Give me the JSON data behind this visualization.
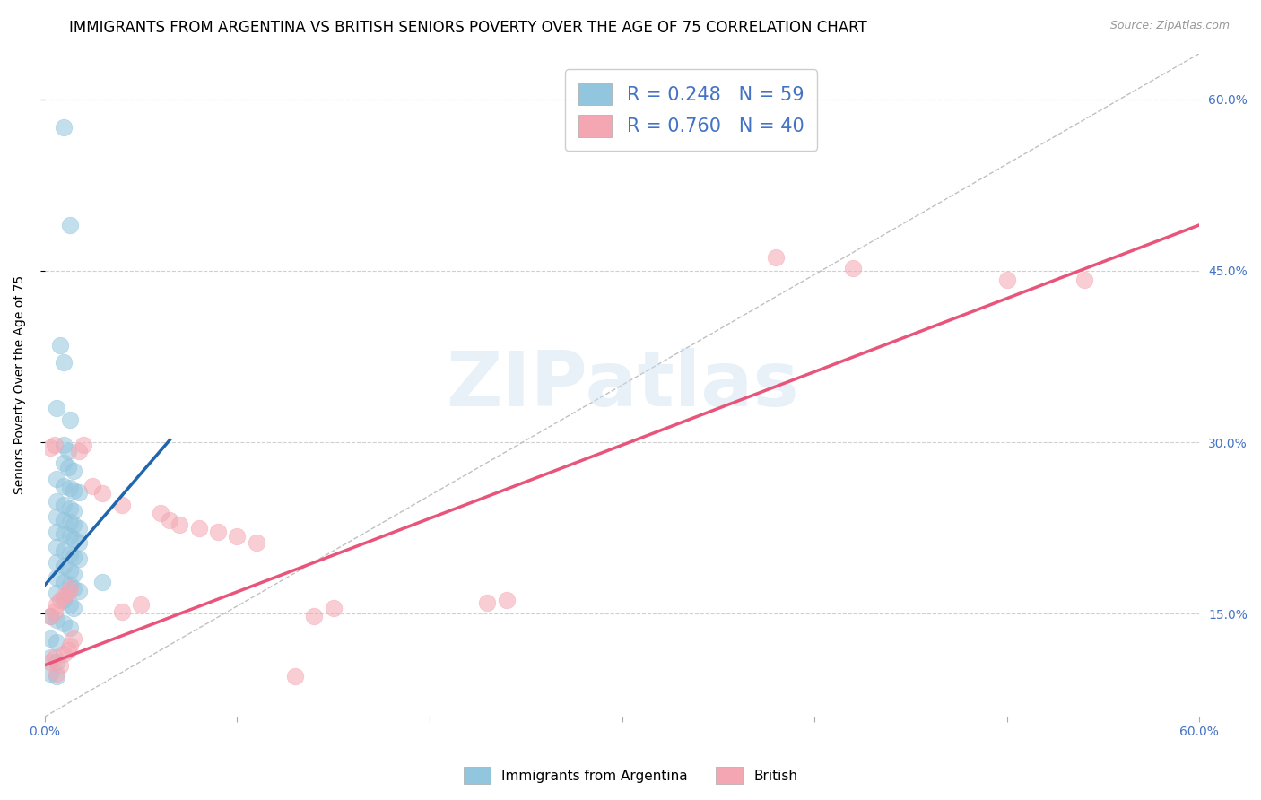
{
  "title": "IMMIGRANTS FROM ARGENTINA VS BRITISH SENIORS POVERTY OVER THE AGE OF 75 CORRELATION CHART",
  "source": "Source: ZipAtlas.com",
  "ylabel": "Seniors Poverty Over the Age of 75",
  "xlim": [
    0,
    0.6
  ],
  "ylim": [
    0.06,
    0.64
  ],
  "watermark": "ZIPatlas",
  "legend1_label": "R = 0.248   N = 59",
  "legend2_label": "R = 0.760   N = 40",
  "legend_bottom1": "Immigrants from Argentina",
  "legend_bottom2": "British",
  "blue_color": "#92c5de",
  "pink_color": "#f4a6b2",
  "blue_line_color": "#2166ac",
  "pink_line_color": "#e8547a",
  "blue_scatter": [
    [
      0.01,
      0.575
    ],
    [
      0.013,
      0.49
    ],
    [
      0.008,
      0.385
    ],
    [
      0.01,
      0.37
    ],
    [
      0.006,
      0.33
    ],
    [
      0.013,
      0.32
    ],
    [
      0.01,
      0.298
    ],
    [
      0.012,
      0.292
    ],
    [
      0.01,
      0.282
    ],
    [
      0.012,
      0.278
    ],
    [
      0.015,
      0.275
    ],
    [
      0.006,
      0.268
    ],
    [
      0.01,
      0.262
    ],
    [
      0.013,
      0.26
    ],
    [
      0.015,
      0.258
    ],
    [
      0.018,
      0.256
    ],
    [
      0.006,
      0.248
    ],
    [
      0.01,
      0.245
    ],
    [
      0.013,
      0.242
    ],
    [
      0.015,
      0.24
    ],
    [
      0.006,
      0.235
    ],
    [
      0.01,
      0.232
    ],
    [
      0.013,
      0.23
    ],
    [
      0.015,
      0.228
    ],
    [
      0.018,
      0.225
    ],
    [
      0.006,
      0.222
    ],
    [
      0.01,
      0.22
    ],
    [
      0.013,
      0.218
    ],
    [
      0.015,
      0.215
    ],
    [
      0.018,
      0.212
    ],
    [
      0.006,
      0.208
    ],
    [
      0.01,
      0.205
    ],
    [
      0.013,
      0.202
    ],
    [
      0.015,
      0.2
    ],
    [
      0.018,
      0.198
    ],
    [
      0.006,
      0.195
    ],
    [
      0.01,
      0.192
    ],
    [
      0.013,
      0.188
    ],
    [
      0.015,
      0.185
    ],
    [
      0.006,
      0.182
    ],
    [
      0.01,
      0.178
    ],
    [
      0.013,
      0.175
    ],
    [
      0.015,
      0.172
    ],
    [
      0.018,
      0.17
    ],
    [
      0.006,
      0.168
    ],
    [
      0.01,
      0.162
    ],
    [
      0.013,
      0.158
    ],
    [
      0.015,
      0.155
    ],
    [
      0.003,
      0.148
    ],
    [
      0.006,
      0.145
    ],
    [
      0.01,
      0.142
    ],
    [
      0.013,
      0.138
    ],
    [
      0.003,
      0.128
    ],
    [
      0.006,
      0.125
    ],
    [
      0.003,
      0.112
    ],
    [
      0.006,
      0.108
    ],
    [
      0.003,
      0.098
    ],
    [
      0.006,
      0.095
    ],
    [
      0.03,
      0.178
    ]
  ],
  "pink_scatter": [
    [
      0.003,
      0.108
    ],
    [
      0.005,
      0.112
    ],
    [
      0.006,
      0.098
    ],
    [
      0.008,
      0.105
    ],
    [
      0.01,
      0.115
    ],
    [
      0.012,
      0.118
    ],
    [
      0.013,
      0.122
    ],
    [
      0.015,
      0.128
    ],
    [
      0.003,
      0.148
    ],
    [
      0.005,
      0.152
    ],
    [
      0.006,
      0.158
    ],
    [
      0.008,
      0.162
    ],
    [
      0.01,
      0.165
    ],
    [
      0.012,
      0.168
    ],
    [
      0.013,
      0.172
    ],
    [
      0.003,
      0.295
    ],
    [
      0.005,
      0.298
    ],
    [
      0.018,
      0.292
    ],
    [
      0.02,
      0.298
    ],
    [
      0.025,
      0.262
    ],
    [
      0.03,
      0.255
    ],
    [
      0.04,
      0.245
    ],
    [
      0.06,
      0.238
    ],
    [
      0.065,
      0.232
    ],
    [
      0.07,
      0.228
    ],
    [
      0.08,
      0.225
    ],
    [
      0.09,
      0.222
    ],
    [
      0.1,
      0.218
    ],
    [
      0.11,
      0.212
    ],
    [
      0.04,
      0.152
    ],
    [
      0.05,
      0.158
    ],
    [
      0.13,
      0.095
    ],
    [
      0.14,
      0.148
    ],
    [
      0.15,
      0.155
    ],
    [
      0.23,
      0.16
    ],
    [
      0.24,
      0.162
    ],
    [
      0.38,
      0.462
    ],
    [
      0.42,
      0.452
    ],
    [
      0.5,
      0.442
    ],
    [
      0.54,
      0.442
    ]
  ],
  "blue_line_x": [
    0.0,
    0.065
  ],
  "blue_line_y": [
    0.175,
    0.302
  ],
  "pink_line_x": [
    0.0,
    0.6
  ],
  "pink_line_y": [
    0.105,
    0.49
  ],
  "ref_line_x": [
    0.0,
    0.6
  ],
  "ref_line_y": [
    0.06,
    0.64
  ],
  "grid_color": "#d0d0d0",
  "title_fontsize": 12,
  "label_fontsize": 10,
  "tick_fontsize": 10,
  "legend_text_color": "#4472c4"
}
